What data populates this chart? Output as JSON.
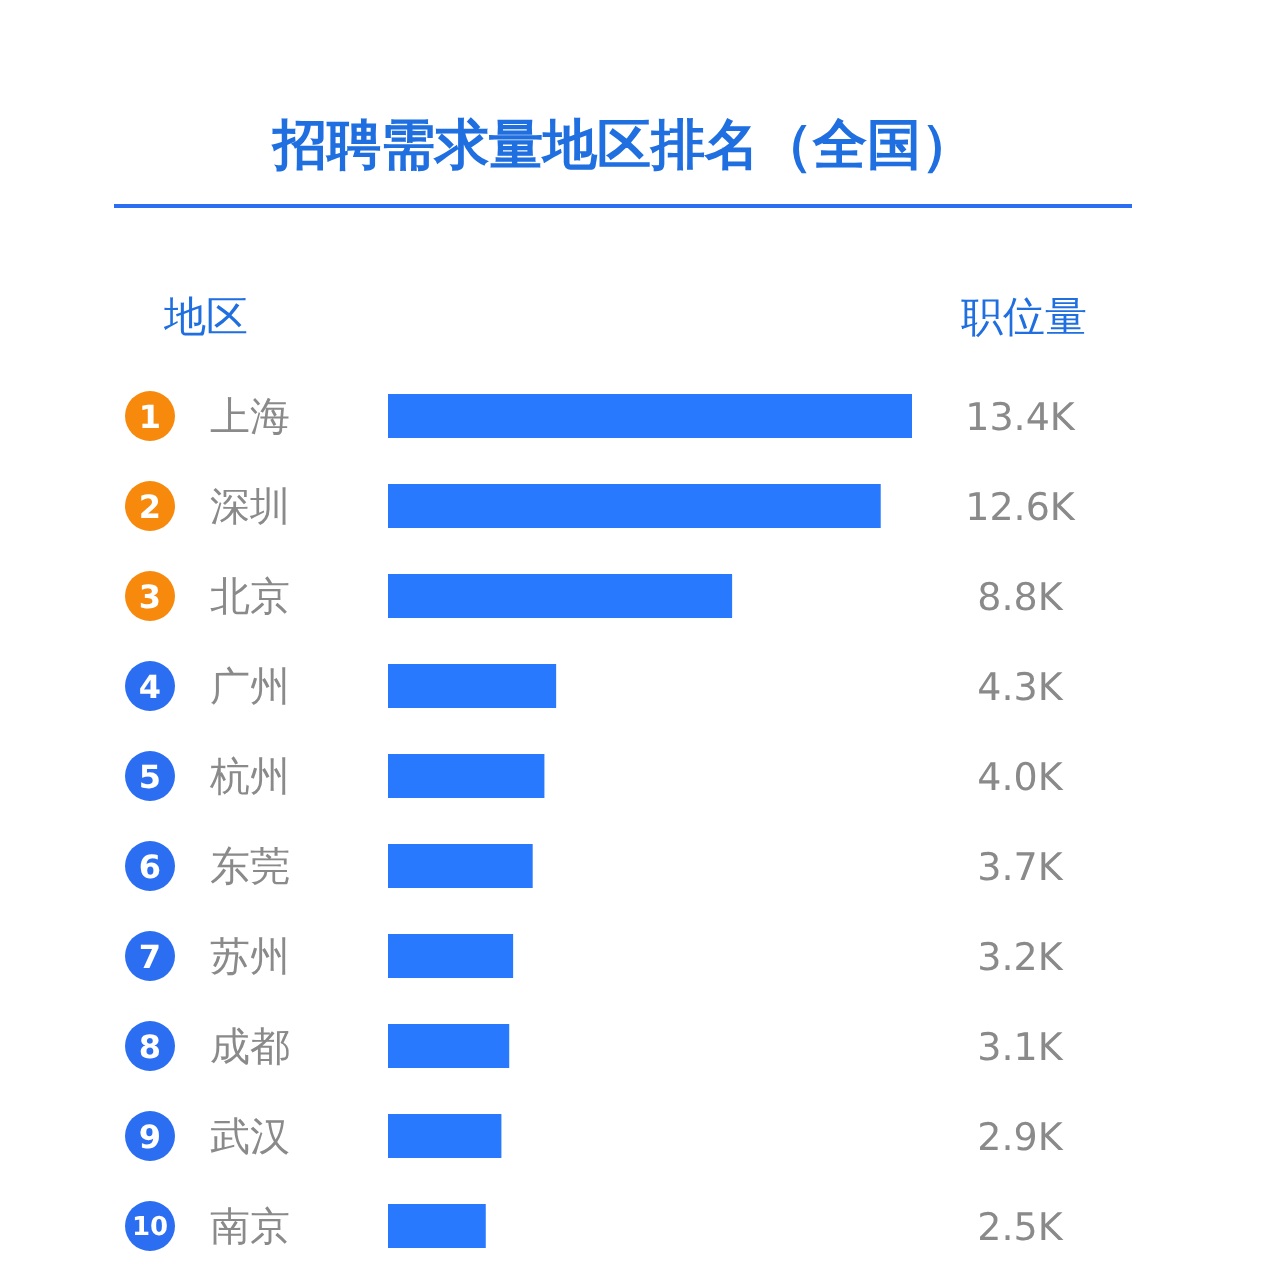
{
  "chart_data": {
    "type": "bar",
    "orientation": "horizontal",
    "title": "招聘需求量地区排名（全国）",
    "ylabel": "地区",
    "xlabel": "职位量",
    "categories": [
      "上海",
      "深圳",
      "北京",
      "广州",
      "杭州",
      "东莞",
      "苏州",
      "成都",
      "武汉",
      "南京"
    ],
    "values": [
      13.4,
      12.6,
      8.8,
      4.3,
      4.0,
      3.7,
      3.2,
      3.1,
      2.9,
      2.5
    ],
    "value_labels": [
      "13.4K",
      "12.6K",
      "8.8K",
      "4.3K",
      "4.0K",
      "3.7K",
      "3.2K",
      "3.1K",
      "2.9K",
      "2.5K"
    ],
    "color": "#2979ff",
    "annotations": [
      "1",
      "2",
      "3",
      "4",
      "5",
      "6",
      "7",
      "8",
      "9",
      "10"
    ]
  }
}
